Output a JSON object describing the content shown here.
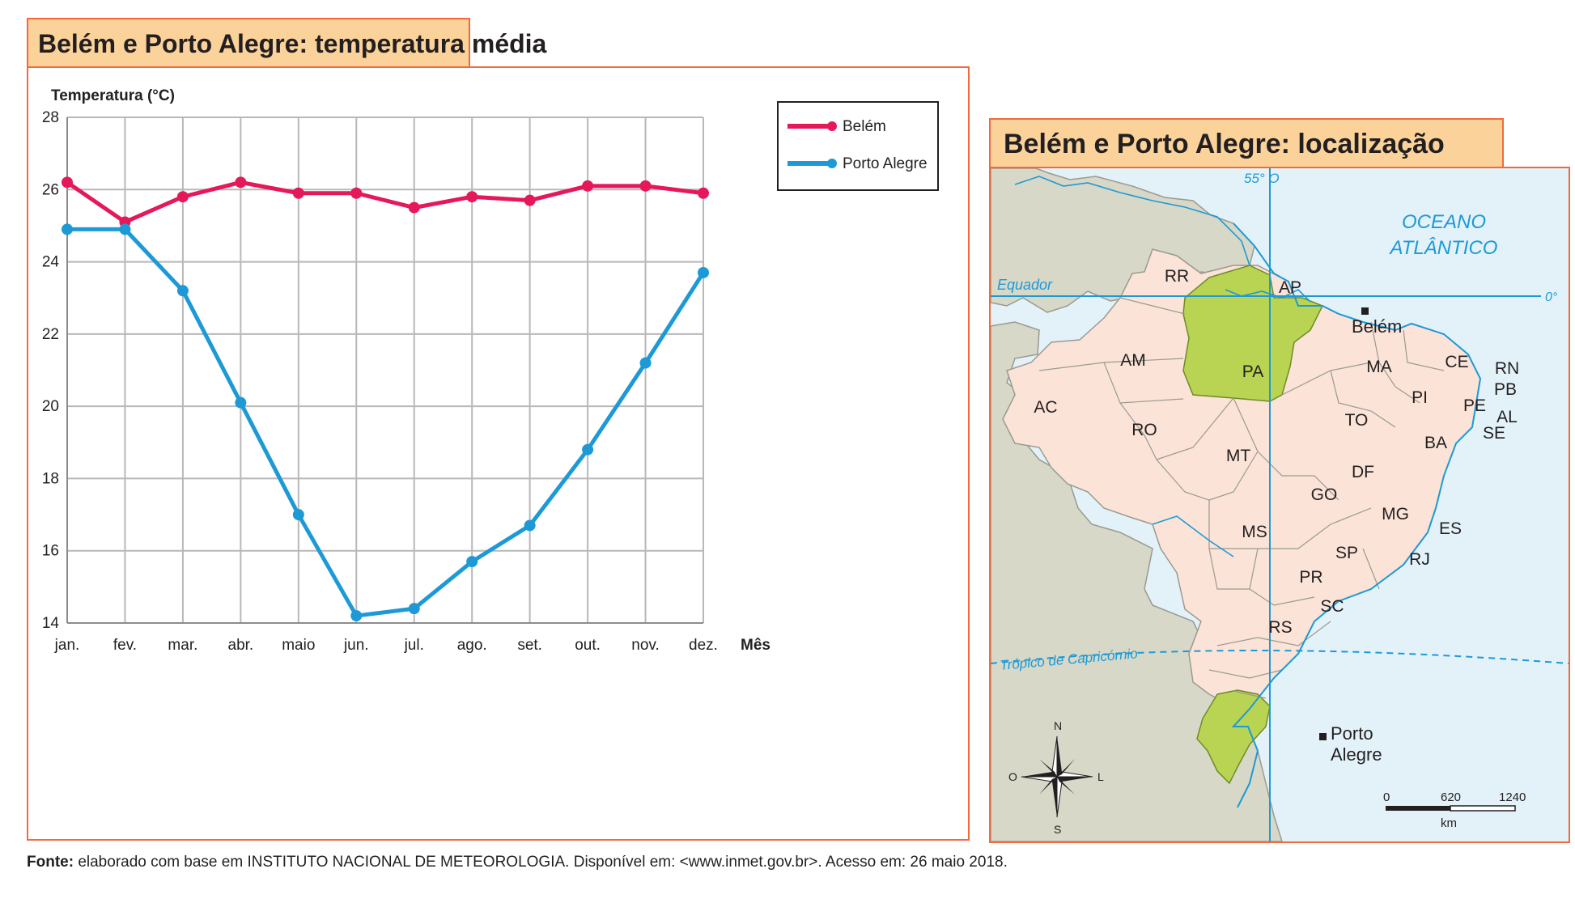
{
  "chart_title": "Belém e Porto Alegre: temperatura média",
  "map_title": "Belém e Porto Alegre: localização",
  "source": {
    "label": "Fonte:",
    "text": " elaborado com base em INSTITUTO NACIONAL DE METEOROLOGIA. Disponível em: <www.inmet.gov.br>. Acesso em: 26 maio 2018."
  },
  "chart_data": {
    "type": "line",
    "ylabel": "Temperatura (°C)",
    "xlabel": "Mês",
    "ylim": [
      14,
      28
    ],
    "yticks": [
      14,
      16,
      18,
      20,
      22,
      24,
      26,
      28
    ],
    "grid": true,
    "legend_position": "top-right",
    "categories": [
      "jan.",
      "fev.",
      "mar.",
      "abr.",
      "maio",
      "jun.",
      "jul.",
      "ago.",
      "set.",
      "out.",
      "nov.",
      "dez."
    ],
    "series": [
      {
        "name": "Belém",
        "color": "#e5185a",
        "values": [
          26.2,
          25.1,
          25.8,
          26.2,
          25.9,
          25.9,
          25.5,
          25.8,
          25.7,
          26.1,
          26.1,
          25.9
        ]
      },
      {
        "name": "Porto Alegre",
        "color": "#1d9ad6",
        "values": [
          24.9,
          24.9,
          23.2,
          20.1,
          17.0,
          14.2,
          14.4,
          15.7,
          16.7,
          18.8,
          21.2,
          23.7
        ]
      }
    ]
  },
  "map": {
    "ocean_label": [
      "OCEANO",
      "ATLÂNTICO"
    ],
    "meridian_label": "55° O",
    "equator_label": "Equador",
    "equator_degree": "0°",
    "tropic_label": "Trópico de Capricórnio",
    "states": [
      "RR",
      "AP",
      "AM",
      "PA",
      "MA",
      "CE",
      "RN",
      "PB",
      "PE",
      "AL",
      "SE",
      "PI",
      "AC",
      "RO",
      "TO",
      "BA",
      "MT",
      "DF",
      "GO",
      "MG",
      "ES",
      "MS",
      "SP",
      "RJ",
      "PR",
      "SC",
      "RS"
    ],
    "cities": {
      "belem": "Belém",
      "porto_alegre": [
        "Porto",
        "Alegre"
      ]
    },
    "compass": {
      "n": "N",
      "s": "S",
      "o": "O",
      "l": "L"
    },
    "scale": {
      "ticks": [
        "0",
        "620",
        "1240"
      ],
      "unit": "km"
    },
    "colors": {
      "ocean": "#e3f2f9",
      "brazil": "#fbe3d8",
      "highlight": "#b9d452",
      "neighbors": "#d7d8c8",
      "water": "#1d9ad6"
    }
  }
}
